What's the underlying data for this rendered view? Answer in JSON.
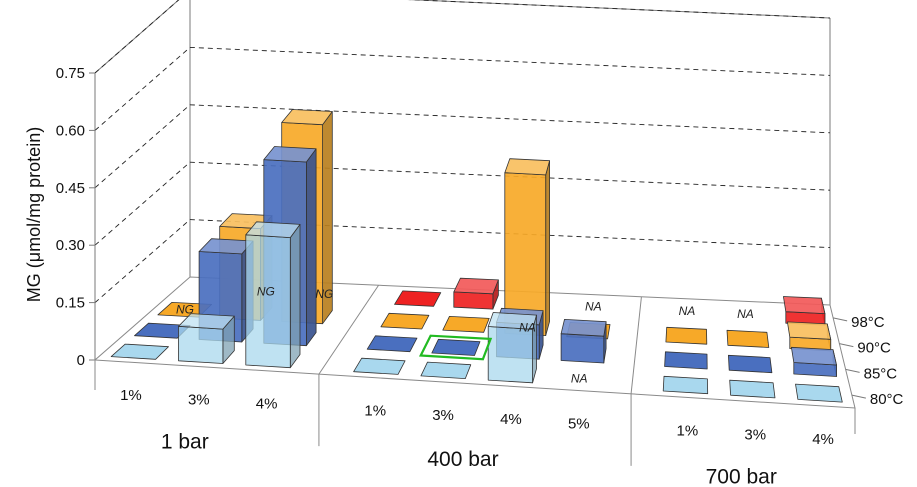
{
  "chart_data": {
    "type": "bar",
    "title": "",
    "ylabel": "MG (μmol/mg protein)",
    "ylim": [
      0,
      0.75
    ],
    "yticks": [
      "0",
      "0.15",
      "0.30",
      "0.45",
      "0.60",
      "0.75"
    ],
    "grid": true,
    "groups": [
      {
        "label": "1 bar",
        "categories": [
          "1%",
          "3%",
          "4%"
        ]
      },
      {
        "label": "400 bar",
        "categories": [
          "1%",
          "3%",
          "4%",
          "5%"
        ]
      },
      {
        "label": "700 bar",
        "categories": [
          "1%",
          "3%",
          "4%"
        ]
      }
    ],
    "series": [
      {
        "name": "98°C",
        "color": "#ee2222",
        "values": [
          null,
          null,
          null,
          0.0,
          0.04,
          null,
          null,
          null,
          null,
          0.03
        ]
      },
      {
        "name": "90°C",
        "color": "#f7a928",
        "values": [
          0.0,
          0.24,
          0.52,
          0.0,
          0.0,
          0.42,
          0.0,
          0.0,
          0.0,
          0.03
        ]
      },
      {
        "name": "85°C",
        "color": "#4a6fbf",
        "values": [
          0.0,
          0.23,
          0.48,
          0.0,
          0.0,
          0.09,
          0.07,
          0.0,
          0.0,
          0.03
        ]
      },
      {
        "name": "80°C",
        "color": "#a9d8ee",
        "values": [
          0.0,
          0.09,
          0.34,
          0.0,
          0.0,
          0.14,
          null,
          0.0,
          0.0,
          0.0
        ]
      }
    ],
    "annotations": [
      {
        "text": "NG",
        "category_index": 0,
        "series_index": 1
      },
      {
        "text": "NG",
        "category_index": 1,
        "series_index": 0
      },
      {
        "text": "NG",
        "category_index": 2,
        "series_index": 0
      },
      {
        "text": "NA",
        "category_index": 5,
        "series_index": 1
      },
      {
        "text": "NA",
        "category_index": 6,
        "series_index": 0
      },
      {
        "text": "NA",
        "category_index": 6,
        "series_index": 3
      },
      {
        "text": "NA",
        "category_index": 7,
        "series_index": 0
      },
      {
        "text": "NA",
        "category_index": 8,
        "series_index": 0
      }
    ],
    "highlight": {
      "category_index": 4,
      "series_index": 2,
      "color": "#22bb22"
    }
  }
}
